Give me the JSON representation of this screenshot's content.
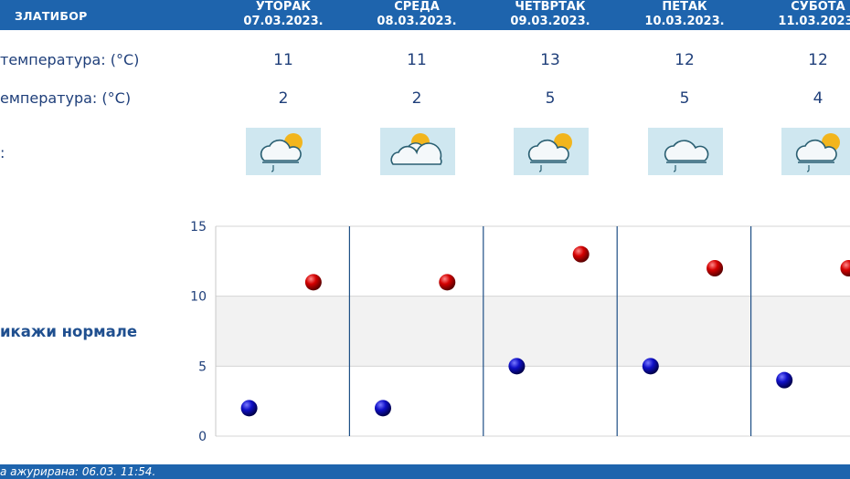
{
  "header": {
    "station": "ЗЛАТИБОР",
    "days": [
      {
        "name": "УТОРАК",
        "date": "07.03.2023."
      },
      {
        "name": "СРЕДА",
        "date": "08.03.2023."
      },
      {
        "name": "ЧЕТВРТАК",
        "date": "09.03.2023."
      },
      {
        "name": "ПЕТАК",
        "date": "10.03.2023."
      },
      {
        "name": "СУБОТА",
        "date": "11.03.2023."
      }
    ]
  },
  "rows": {
    "max_label": "температура: (°C)",
    "min_label": "емпература: (°C)",
    "icon_label": ":",
    "max": [
      "11",
      "11",
      "13",
      "12",
      "12"
    ],
    "min": [
      "2",
      "2",
      "5",
      "5",
      "4"
    ],
    "icons": [
      "cloud-sun-rain-icon",
      "cloud-sun-icon",
      "cloud-sun-rain-icon",
      "cloud-rain-icon",
      "cloud-sun-rain-icon"
    ]
  },
  "toggle_label": "икажи нормале",
  "footer": {
    "updated": "а ажурирана:  06.03.  11:54."
  },
  "chart_data": {
    "type": "scatter",
    "categories": [
      "УТОРАК",
      "СРЕДА",
      "ЧЕТВРТАК",
      "ПЕТАК",
      "СУБОТА"
    ],
    "series": [
      {
        "values": [
          11,
          11,
          13,
          12,
          12
        ],
        "color": "#cc0000"
      },
      {
        "values": [
          2,
          2,
          5,
          5,
          4
        ],
        "color": "#0000aa"
      }
    ],
    "yticks": [
      "0",
      "5",
      "10",
      "15"
    ],
    "ylim": [
      0,
      15
    ],
    "band": [
      5,
      10
    ],
    "grid": true
  }
}
